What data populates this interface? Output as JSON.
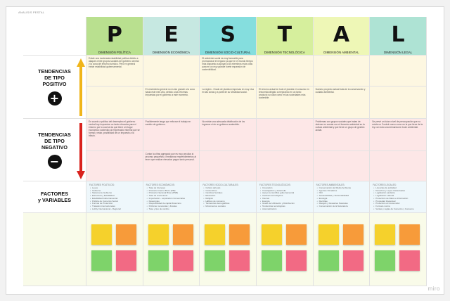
{
  "frame_title": "ANALISIS PESTAL",
  "logo": "miro",
  "colors": {
    "P": "#b9e08f",
    "E": "#c6e8e1",
    "S": "#85dede",
    "T": "#d6ef9d",
    "A": "#eef7b6",
    "L": "#aee3d4",
    "positive_bg": "#fdf7e1",
    "negative_bg": "#fde7e7",
    "factors_bg": "#eef7fb",
    "stickies_bg": "#f9fbe9",
    "up_arrow": "#f0b51a",
    "down_arrow": "#d9231e",
    "sticky_yellow": "#f5d12c",
    "sticky_orange": "#f79b3a",
    "sticky_green": "#7ed36a",
    "sticky_pink": "#f26a84"
  },
  "columns": [
    {
      "letter": "P",
      "label": "DIMENSIÓN POLÍTICA"
    },
    {
      "letter": "E",
      "label": "DIMENSIÓN ECONÓMICA"
    },
    {
      "letter": "S",
      "label": "DIMENSIÓN SOCIO-CULTURAL"
    },
    {
      "letter": "T",
      "label": "DIMENSIÓN TECNOLÓGICA"
    },
    {
      "letter": "A",
      "label": "DIMENSIÓN AMBIENTAL"
    },
    {
      "letter": "L",
      "label": "DIMENSIÓN LEGAL"
    }
  ],
  "rows": {
    "positive": {
      "label_line1": "TENDENCIAS",
      "label_line2": "DE TIPO",
      "label_line3": "POSITIVO",
      "symbol": "+"
    },
    "negative": {
      "label_line1": "TENDENCIAS",
      "label_line2": "DE TIPO",
      "label_line3": "NEGATIVO",
      "symbol": "−"
    },
    "factors": {
      "label_line1": "FACTORES",
      "label_line2": "y VARIABLES"
    }
  },
  "positive_notes": {
    "p1": "Existe una moderada estabilidad política debido a ataques entre grupos sociales del gobierno central y la zona del entorno turístico. Pero en general existe estabilidad gubernamental.",
    "e2": "El crecimiento general no es tan grande a la zona hasta este mes año, debido a las reformas impuestas por el gobierno a este momento.",
    "s1": "El ambiente social es muy favorable para promocionar el negocio ya que en el mundo tiempo más dispuesto a apoyar a los miembros estos días para en un muy grande fuerte expansión de sostenibilidad.",
    "s2": "La región - Grado de plantea empresas en muy viva en las zonas y a partir de su Movilidad social.",
    "t2": "El entorno actual en todo el planeta el consumo en línea está dirigido a mejorando en un tanto producto su valor como en las sociedades más sostenible.",
    "a2": "Nuestro proyecto actual trata de la conservación y cuidado ambiental."
  },
  "negative_notes": {
    "p1": "En cuanto a política del desempleo el gobierno central hay impuestos un tanto elevados para el entorno por lo cual se da que tiene un fragor económico sostenido al empresario informal que se formal y estar, posibilidad de un impuesto a la tributo.",
    "e1": "Posiblemente tenga que reforzar el trabajo en cambio de gobierno.",
    "s1": "No existe una adecuada distribución de los ingresos si de un gobierno sostenible.",
    "a1": "Problemas con grupos sociales que tratan de obtener en cuenta con el fomento ambiental en la cultura ambiental y que tiene un grupo de gestión actual.",
    "l1": "Se prevé un futuro nivel de preocupación que no existe un Control nuevo como en la que tiene de la ley con todo una demanda en buen ambiental.",
    "e2": "Contar la cifras agregado que es muy peculiar al proceso pequeños o medianos emprendimientos al tener que realizar elevados pagos tanto personal."
  },
  "factors": [
    {
      "title": "FACTORES POLÍTICOS:",
      "items": [
        "Leyes",
        "Gobierno",
        "Sistema de Gobierno",
        "Estructura y Estabilidad",
        "Estabilidad Gubernamental",
        "Política de Comercio Social",
        "Formas de Protección",
        "Tratados Internacionales",
        "Lobby Internacional - Regional"
      ]
    },
    {
      "title": "FACTORES ECONÓMICOS:",
      "items": [
        "Tasa de intereses",
        "Producto Interno Bruto (PIB)",
        "Producto Nacional Bruto (PNB)",
        "Tasa de crecimiento",
        "Importación - exportación Comerciales",
        "Desempleo",
        "Disponibilidad de capital financiero",
        "Políticas monetarias y fiscales",
        "Tasa y tipo de cambio"
      ]
    },
    {
      "title": "FACTORES SOCIO-CULTURALES:",
      "items": [
        "Cultura del país",
        "Costumbres",
        "Cambios Sociales",
        "Educación",
        "Religión",
        "Hábitos de consumo",
        "Tendencias demográficas",
        "Movimientos sociales"
      ]
    },
    {
      "title": "FACTORES TECNOLÓGICOS:",
      "items": [
        "Innovación",
        "Investigación y desarrollo",
        "Apoyo la científica gubernamental",
        "Cambios tecnológicos",
        "Internet",
        "Energía",
        "Grado de Utilización y Distribución",
        "Tendencias tecnológicas",
        "Automatización"
      ]
    },
    {
      "title": "FACTORES AMBIENTALES:",
      "items": [
        "Conservación del Medio Ambiente",
        "Agentes Climáticos",
        "ISO",
        "Sostenibilidad y Sustentabilidad",
        "Ecología",
        "Reciclaje",
        "Riesgos y Desastres Naturales",
        "Conservación de la Naturaleza"
      ]
    },
    {
      "title": "FACTORES LEGALES:",
      "items": [
        "Licencias de actividad",
        "Derechos y Leyes Intelectuales",
        "Legislación sanitaria",
        "Legislación Laboral",
        "Protección de Datos e Información",
        "Propiedad Intelectual",
        "Protección al Consumidor",
        "Formato norma",
        "Ventas y reglas de Comercio y Consumo"
      ]
    }
  ]
}
